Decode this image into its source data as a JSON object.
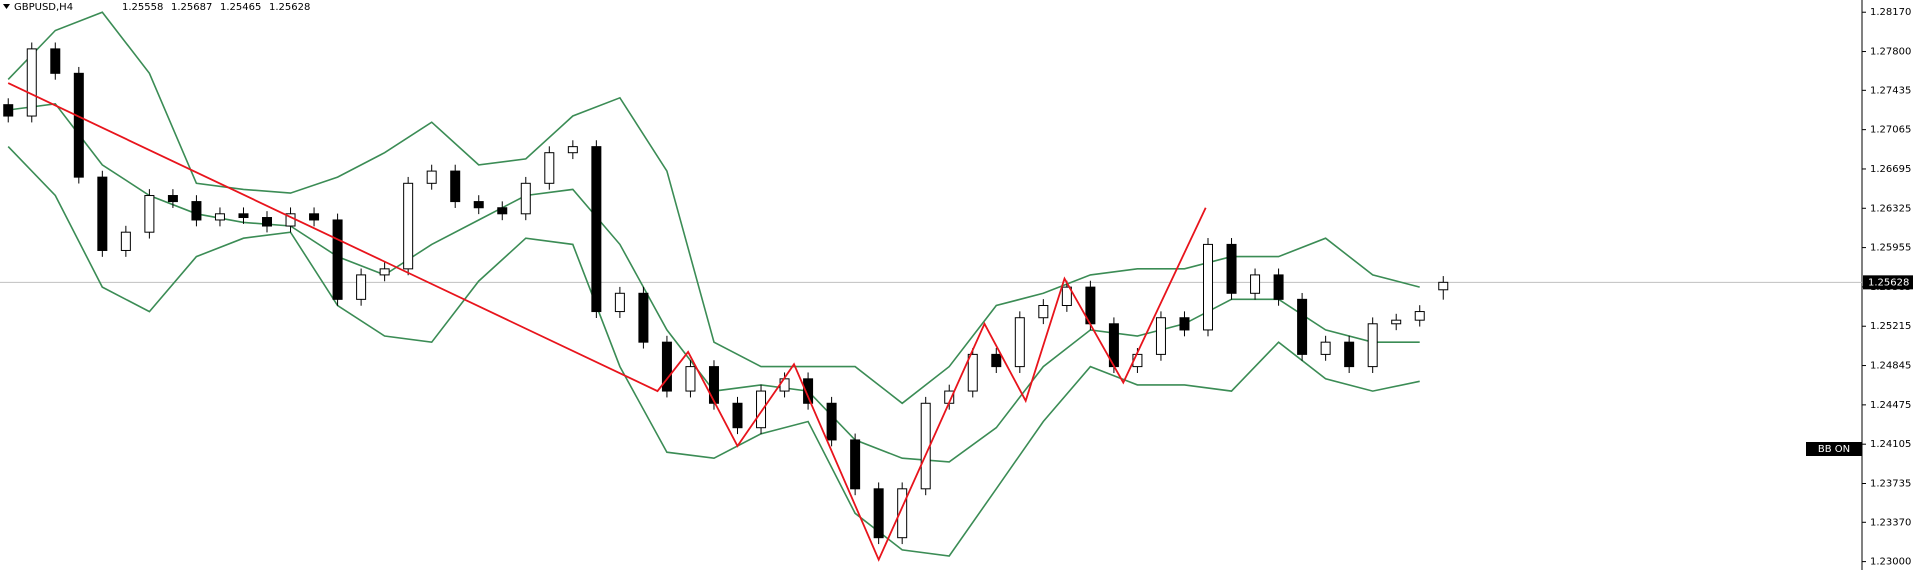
{
  "chart_data": {
    "type": "candlestick",
    "title": "GBPUSD,H4",
    "annotation": "BB ON",
    "colors": {
      "up": "#ffffff",
      "down": "#000000",
      "outline": "#000000",
      "bands": "#3b8c55",
      "zigzag": "#e8141c",
      "price_line": "#c0c0c0"
    },
    "open": [
      1.273,
      1.27193,
      1.27825,
      1.27595,
      1.26618,
      1.25928,
      1.261,
      1.26445,
      1.26388,
      1.26215,
      1.26273,
      1.26238,
      1.26158,
      1.26273,
      1.26215,
      1.25468,
      1.25698,
      1.25755,
      1.2656,
      1.26675,
      1.26388,
      1.2633,
      1.26273,
      1.2656,
      1.26848,
      1.26905,
      1.25353,
      1.25525,
      1.25065,
      1.24605,
      1.24835,
      1.2449,
      1.2426,
      1.24605,
      1.2472,
      1.2449,
      1.24145,
      1.23685,
      1.23225,
      1.23685,
      1.2449,
      1.24605,
      1.2495,
      1.24835,
      1.25295,
      1.2541,
      1.25583,
      1.25238,
      1.24835,
      1.2495,
      1.25295,
      1.2518,
      1.25985,
      1.25525,
      1.25698,
      1.25468,
      1.2495,
      1.25065,
      1.24835,
      1.25238,
      1.25272,
      1.25558
    ],
    "high": [
      1.2736,
      1.27885,
      1.27885,
      1.27655,
      1.26678,
      1.2616,
      1.26505,
      1.26505,
      1.26448,
      1.26333,
      1.26333,
      1.26298,
      1.26333,
      1.26333,
      1.26275,
      1.25758,
      1.25815,
      1.2662,
      1.26735,
      1.26735,
      1.26448,
      1.2639,
      1.2662,
      1.26908,
      1.26965,
      1.26965,
      1.25585,
      1.25585,
      1.25125,
      1.24895,
      1.24895,
      1.2455,
      1.24665,
      1.2478,
      1.2478,
      1.2455,
      1.24205,
      1.23745,
      1.23745,
      1.2455,
      1.24665,
      1.2501,
      1.2501,
      1.25355,
      1.2547,
      1.25643,
      1.25643,
      1.25298,
      1.2501,
      1.25355,
      1.25355,
      1.26045,
      1.26045,
      1.25758,
      1.25758,
      1.25528,
      1.25125,
      1.25125,
      1.25298,
      1.25332,
      1.25413,
      1.25687
    ],
    "low": [
      1.27133,
      1.27133,
      1.27535,
      1.26558,
      1.25868,
      1.25868,
      1.2604,
      1.26328,
      1.26155,
      1.26155,
      1.26178,
      1.26098,
      1.26098,
      1.26155,
      1.25408,
      1.25408,
      1.25638,
      1.25695,
      1.265,
      1.26328,
      1.2627,
      1.26213,
      1.26213,
      1.265,
      1.26788,
      1.25293,
      1.25293,
      1.25005,
      1.24545,
      1.24545,
      1.2443,
      1.242,
      1.242,
      1.24545,
      1.2443,
      1.24085,
      1.23625,
      1.23165,
      1.23165,
      1.23625,
      1.2443,
      1.24545,
      1.24775,
      1.24775,
      1.25235,
      1.2535,
      1.25178,
      1.24775,
      1.24775,
      1.2489,
      1.2512,
      1.2512,
      1.25465,
      1.25465,
      1.25408,
      1.2489,
      1.2489,
      1.24775,
      1.24775,
      1.25178,
      1.25212,
      1.25465
    ],
    "close": [
      1.27193,
      1.27825,
      1.27595,
      1.26618,
      1.25928,
      1.261,
      1.26445,
      1.26388,
      1.26215,
      1.26273,
      1.26238,
      1.26158,
      1.26273,
      1.26215,
      1.25468,
      1.25698,
      1.25755,
      1.2656,
      1.26675,
      1.26388,
      1.2633,
      1.26273,
      1.2656,
      1.26848,
      1.26905,
      1.25353,
      1.25525,
      1.25065,
      1.24605,
      1.24835,
      1.2449,
      1.2426,
      1.24605,
      1.2472,
      1.2449,
      1.24145,
      1.23685,
      1.23225,
      1.23685,
      1.2449,
      1.24605,
      1.2495,
      1.24835,
      1.25295,
      1.2541,
      1.25583,
      1.25238,
      1.24835,
      1.2495,
      1.25295,
      1.2518,
      1.25985,
      1.25525,
      1.25698,
      1.25468,
      1.2495,
      1.25065,
      1.24835,
      1.25238,
      1.25272,
      1.25353,
      1.25628
    ],
    "bands": {
      "x": [
        0,
        2,
        4,
        6,
        8,
        10,
        12,
        14,
        16,
        18,
        20,
        22,
        24,
        26,
        28,
        30,
        32,
        34,
        36,
        38,
        40,
        42,
        44,
        46,
        48,
        50,
        52,
        54,
        56,
        58,
        60
      ],
      "upper": [
        1.27538,
        1.27998,
        1.2817,
        1.27595,
        1.2656,
        1.26503,
        1.26468,
        1.26618,
        1.26848,
        1.27135,
        1.26733,
        1.2679,
        1.27193,
        1.27365,
        1.26675,
        1.25065,
        1.24835,
        1.24835,
        1.24835,
        1.2449,
        1.24835,
        1.2541,
        1.25525,
        1.25698,
        1.25755,
        1.25755,
        1.2587,
        1.2587,
        1.26043,
        1.25698,
        1.25583
      ],
      "middle": [
        1.2725,
        1.27308,
        1.26733,
        1.26445,
        1.26273,
        1.26192,
        1.26158,
        1.2587,
        1.25698,
        1.25985,
        1.26215,
        1.26445,
        1.26503,
        1.25985,
        1.2518,
        1.24605,
        1.24663,
        1.24605,
        1.24145,
        1.23973,
        1.23938,
        1.2426,
        1.24835,
        1.2518,
        1.25123,
        1.25238,
        1.25468,
        1.25468,
        1.2518,
        1.25065,
        1.25065
      ],
      "lower": [
        1.26905,
        1.26445,
        1.25583,
        1.25353,
        1.2587,
        1.26043,
        1.261,
        1.2541,
        1.25123,
        1.25065,
        1.2564,
        1.26043,
        1.25985,
        1.24835,
        1.2403,
        1.23973,
        1.24203,
        1.24318,
        1.23455,
        1.2311,
        1.23053,
        1.23685,
        1.24318,
        1.24835,
        1.24663,
        1.24663,
        1.24605,
        1.25065,
        1.2472,
        1.24605,
        1.24697
      ]
    },
    "zigzag": {
      "x": [
        0,
        27.6,
        28.9,
        31,
        33.4,
        37,
        41.5,
        43.25,
        44.9,
        47.4,
        50.9
      ],
      "values": [
        1.27503,
        1.24605,
        1.24973,
        1.24088,
        1.24858,
        1.23018,
        1.25238,
        1.24513,
        1.25663,
        1.24685,
        1.2633
      ]
    },
    "xlim": [
      -0.35,
      78.8
    ],
    "ylim": [
      1.22921,
      1.28285
    ],
    "yticks": [
      {
        "value": 1.2817,
        "label": "1.28170"
      },
      {
        "value": 1.278,
        "label": "1.27800"
      },
      {
        "value": 1.27435,
        "label": "1.27435"
      },
      {
        "value": 1.27065,
        "label": "1.27065"
      },
      {
        "value": 1.26695,
        "label": "1.26695"
      },
      {
        "value": 1.26325,
        "label": "1.26325"
      },
      {
        "value": 1.25955,
        "label": "1.25955"
      },
      {
        "value": 1.25585,
        "label": "1.25585"
      },
      {
        "value": 1.25215,
        "label": "1.25215"
      },
      {
        "value": 1.24845,
        "label": "1.24845"
      },
      {
        "value": 1.24475,
        "label": "1.24475"
      },
      {
        "value": 1.24105,
        "label": "1.24105"
      },
      {
        "value": 1.23735,
        "label": "1.23735"
      },
      {
        "value": 1.2337,
        "label": "1.23370"
      },
      {
        "value": 1.23,
        "label": "1.23000"
      }
    ]
  }
}
